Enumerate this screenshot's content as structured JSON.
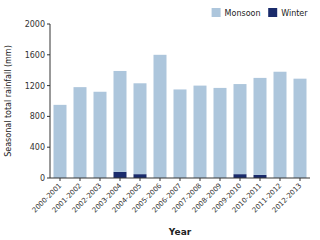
{
  "chart_data": {
    "type": "bar",
    "stacked": true,
    "categories": [
      "2000-2001",
      "2001-2002",
      "2002-2003",
      "2003-2004",
      "2004-2005",
      "2005-2006",
      "2006-2007",
      "2007-2008",
      "2008-2009",
      "2009-2010",
      "2010-2011",
      "2011-2012",
      "2012-2013"
    ],
    "series": [
      {
        "name": "Winter",
        "color": "#1a2b6b",
        "values": [
          0,
          0,
          0,
          80,
          50,
          0,
          0,
          0,
          0,
          50,
          40,
          0,
          0
        ]
      },
      {
        "name": "Monsoon",
        "color": "#adc6dc",
        "values": [
          950,
          1180,
          1120,
          1310,
          1180,
          1600,
          1150,
          1200,
          1170,
          1170,
          1260,
          1380,
          1290
        ]
      }
    ],
    "xlabel": "Year",
    "ylabel": "Seasonal total rainfall (mm)",
    "ylim": [
      0,
      2000
    ],
    "yticks": [
      0,
      400,
      800,
      1200,
      1600,
      2000
    ],
    "legend": "upper right",
    "grid": false
  }
}
